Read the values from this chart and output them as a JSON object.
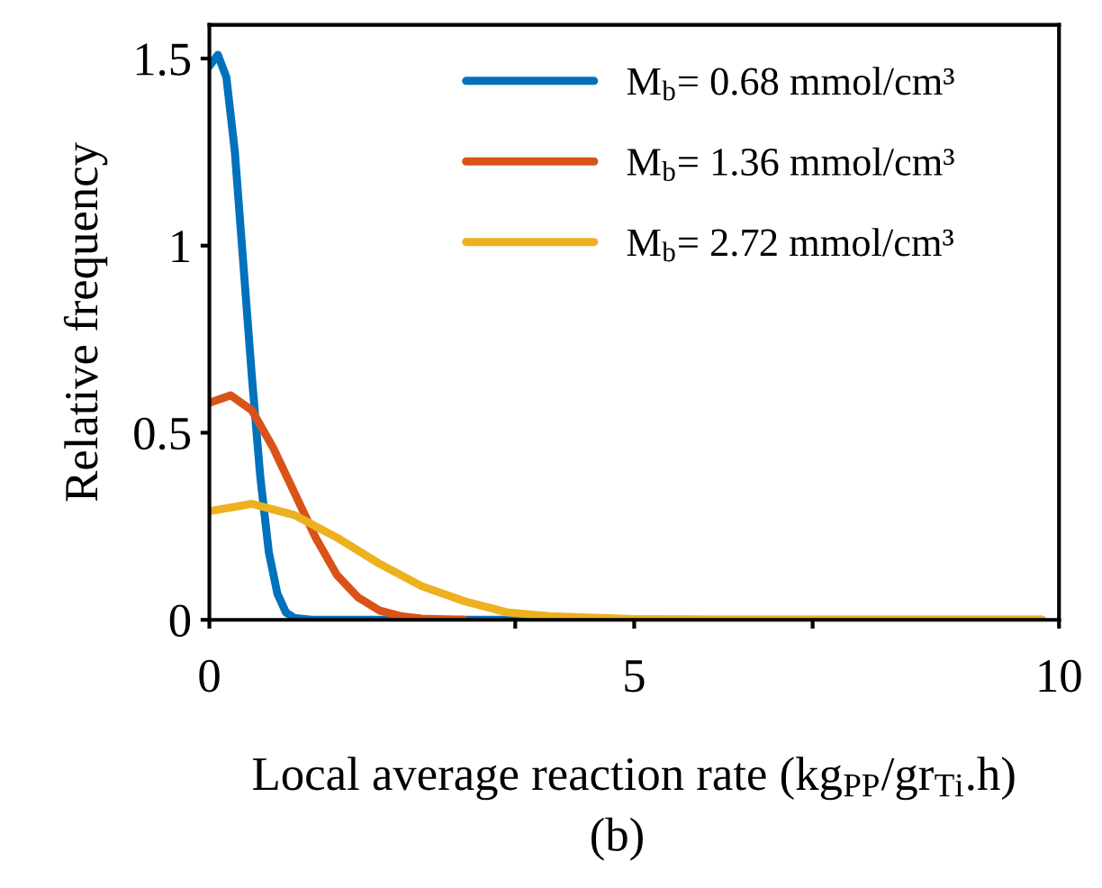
{
  "chart_data": {
    "type": "line",
    "xlabel": "Local average reaction rate (kg$_{PP}$/gr$_{Ti}$.h)",
    "ylabel": "Relative frequency",
    "xlim": [
      0,
      10
    ],
    "xticks": [
      0,
      {
        "value": 3.6,
        "label": null
      },
      5,
      {
        "value": 7.1,
        "label": null
      },
      10
    ],
    "ylim": [
      0,
      1.59
    ],
    "yticks": [
      0,
      0.5,
      1,
      1.5
    ],
    "grid": false,
    "legend": "top right",
    "marker": "none",
    "line_style": "solid",
    "annotations": [
      "(b)"
    ],
    "series": [
      {
        "name": "M$_{b}$= 0.68 mmol/cm³",
        "color": "#0072bd",
        "x": [
          0,
          0.1,
          0.2,
          0.3,
          0.4,
          0.5,
          0.6,
          0.7,
          0.8,
          0.9,
          1.0,
          1.2,
          2,
          9.8
        ],
        "values": [
          1.48,
          1.51,
          1.45,
          1.25,
          0.95,
          0.65,
          0.38,
          0.18,
          0.07,
          0.02,
          0.005,
          0,
          0,
          0
        ]
      },
      {
        "name": "M$_{b}$= 1.36 mmol/cm³",
        "color": "#d95319",
        "x": [
          0,
          0.25,
          0.5,
          0.75,
          1.0,
          1.25,
          1.5,
          1.75,
          2.0,
          2.25,
          2.5,
          3
        ],
        "values": [
          0.58,
          0.6,
          0.56,
          0.46,
          0.34,
          0.22,
          0.12,
          0.06,
          0.025,
          0.01,
          0.003,
          0
        ]
      },
      {
        "name": "M$_{b}$= 2.72 mmol/cm³",
        "color": "#edb120",
        "x": [
          0,
          0.5,
          1,
          1.5,
          2,
          2.5,
          3,
          3.5,
          4,
          5,
          6,
          9.8
        ],
        "values": [
          0.29,
          0.31,
          0.28,
          0.22,
          0.15,
          0.09,
          0.05,
          0.02,
          0.01,
          0.002,
          0,
          0
        ]
      }
    ]
  }
}
